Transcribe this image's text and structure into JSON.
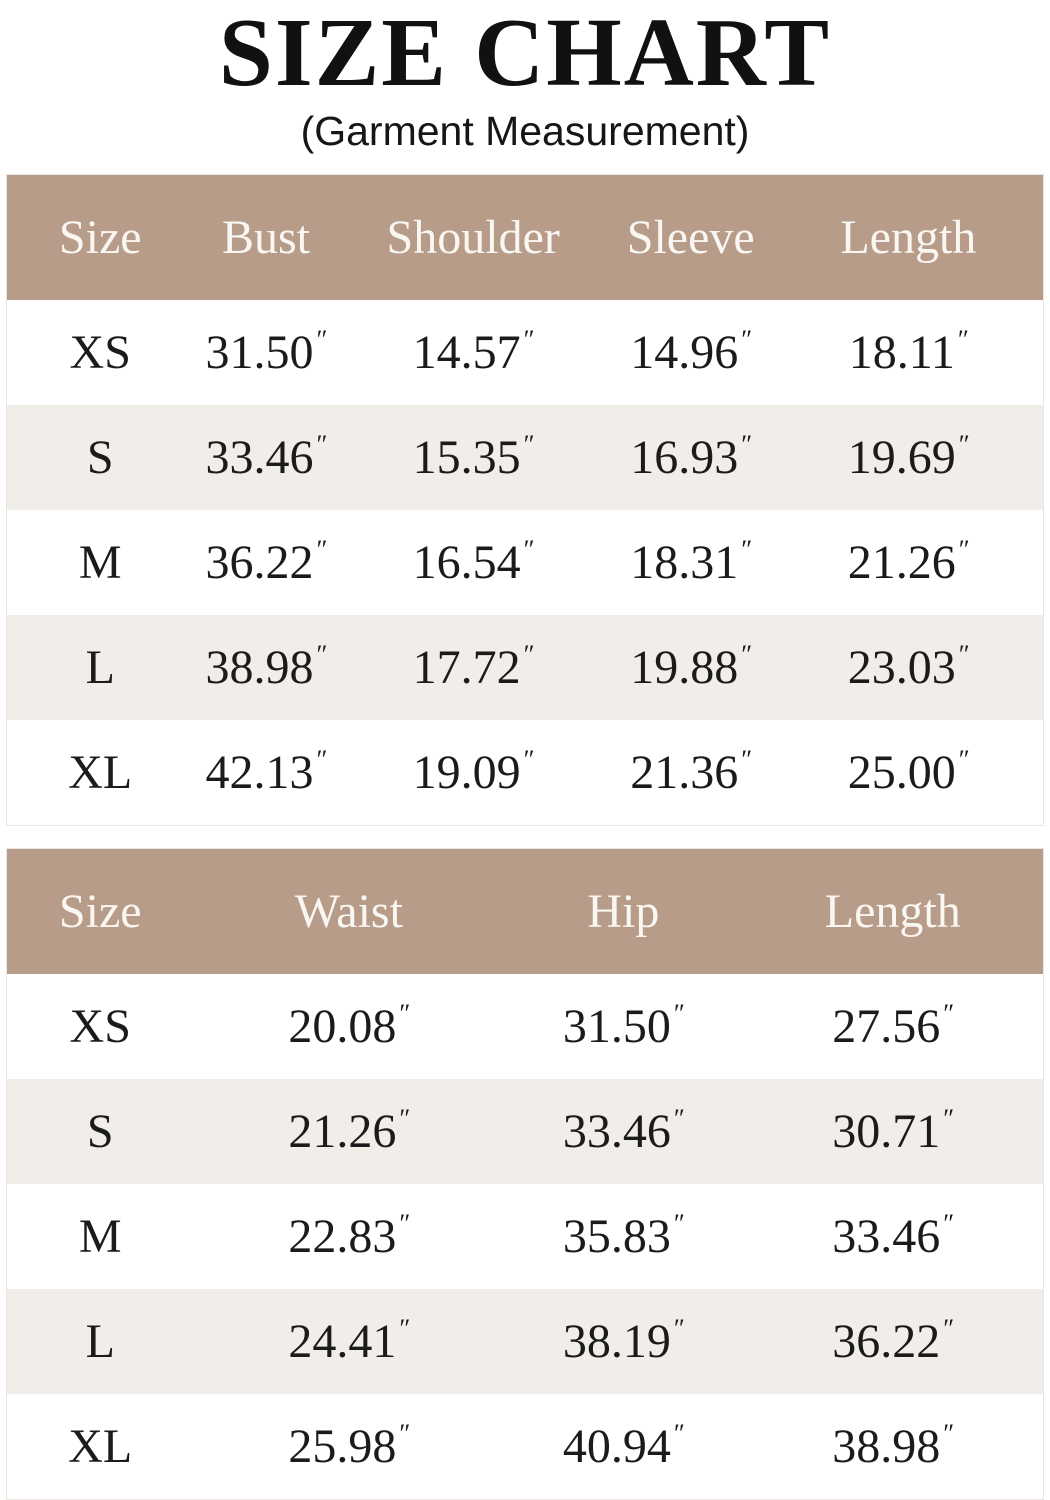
{
  "header": {
    "title": "SIZE CHART",
    "subtitle": "(Garment Measurement)"
  },
  "unit_mark": "″",
  "units": "inches",
  "colors": {
    "header_bg": "#B79C89",
    "header_text": "#FAF6F1",
    "row_bg": "#FFFFFF",
    "row_alt_bg": "#F1EDE8",
    "body_text": "#1B1B1B",
    "title_text": "#111111",
    "table_border": "#E9E6E2"
  },
  "chart_data": [
    {
      "type": "table",
      "name": "garment-measurement-top",
      "columns": [
        "Size",
        "Bust",
        "Shoulder",
        "Sleeve",
        "Length"
      ],
      "rows": [
        [
          "XS",
          "31.50",
          "14.57",
          "14.96",
          "18.11"
        ],
        [
          "S",
          "33.46",
          "15.35",
          "16.93",
          "19.69"
        ],
        [
          "M",
          "36.22",
          "16.54",
          "18.31",
          "21.26"
        ],
        [
          "L",
          "38.98",
          "17.72",
          "19.88",
          "23.03"
        ],
        [
          "XL",
          "42.13",
          "19.09",
          "21.36",
          "25.00"
        ]
      ]
    },
    {
      "type": "table",
      "name": "garment-measurement-bottom",
      "columns": [
        "Size",
        "Waist",
        "Hip",
        "Length"
      ],
      "rows": [
        [
          "XS",
          "20.08",
          "31.50",
          "27.56"
        ],
        [
          "S",
          "21.26",
          "33.46",
          "30.71"
        ],
        [
          "M",
          "22.83",
          "35.83",
          "33.46"
        ],
        [
          "L",
          "24.41",
          "38.19",
          "36.22"
        ],
        [
          "XL",
          "25.98",
          "40.94",
          "38.98"
        ]
      ]
    }
  ]
}
